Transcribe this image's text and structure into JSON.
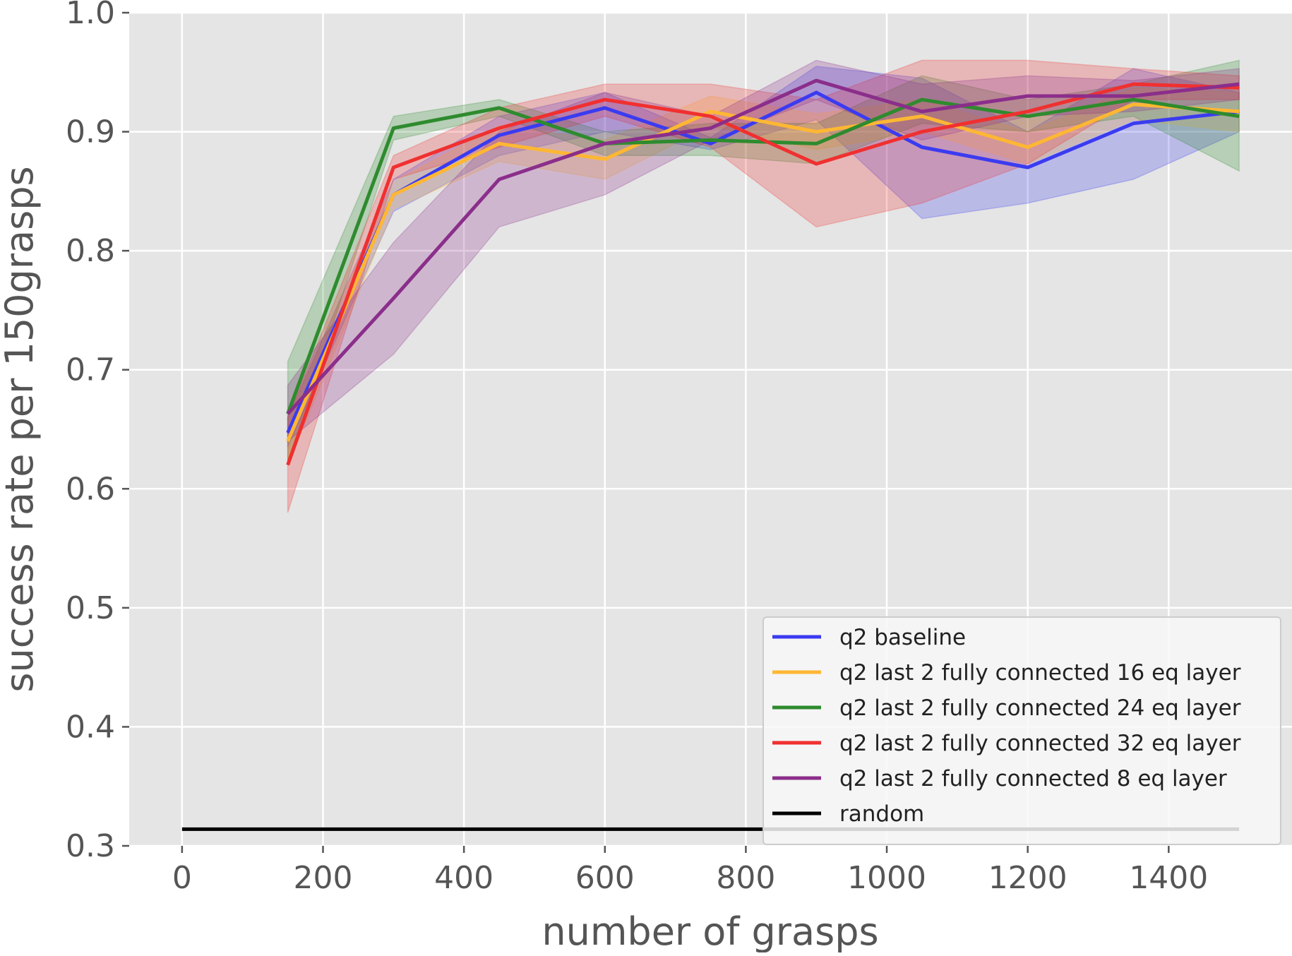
{
  "chart_data": {
    "type": "line",
    "title": "",
    "xlabel": "number of grasps",
    "ylabel": "success rate per 150grasps",
    "xlim": [
      -75,
      1575
    ],
    "ylim": [
      0.3,
      1.0
    ],
    "x_ticks": [
      0,
      200,
      400,
      600,
      800,
      1000,
      1200,
      1400
    ],
    "x_tick_labels": [
      "0",
      "200",
      "400",
      "600",
      "800",
      "1000",
      "1200",
      "1400"
    ],
    "y_ticks": [
      0.3,
      0.4,
      0.5,
      0.6,
      0.7,
      0.8,
      0.9,
      1.0
    ],
    "y_tick_labels": [
      "0.3",
      "0.4",
      "0.5",
      "0.6",
      "0.7",
      "0.8",
      "0.9",
      "1.0"
    ],
    "grid": true,
    "legend_position": "lower-right",
    "x": [
      150,
      300,
      450,
      600,
      750,
      900,
      1050,
      1200,
      1350,
      1500
    ],
    "series": [
      {
        "name": "q2 baseline",
        "color": "#3b3bf0",
        "values": [
          0.647,
          0.847,
          0.897,
          0.92,
          0.89,
          0.933,
          0.887,
          0.87,
          0.907,
          0.917
        ],
        "lower": [
          0.635,
          0.833,
          0.88,
          0.9,
          0.885,
          0.91,
          0.827,
          0.84,
          0.86,
          0.9
        ],
        "upper": [
          0.66,
          0.86,
          0.913,
          0.933,
          0.895,
          0.955,
          0.945,
          0.9,
          0.953,
          0.933
        ]
      },
      {
        "name": "q2 last 2 fully connected 16 eq layer",
        "color": "#ffb733",
        "values": [
          0.64,
          0.847,
          0.89,
          0.877,
          0.917,
          0.9,
          0.913,
          0.887,
          0.923,
          0.917
        ],
        "lower": [
          0.62,
          0.835,
          0.875,
          0.86,
          0.905,
          0.885,
          0.9,
          0.873,
          0.91,
          0.9
        ],
        "upper": [
          0.66,
          0.858,
          0.905,
          0.893,
          0.93,
          0.915,
          0.927,
          0.9,
          0.937,
          0.933
        ]
      },
      {
        "name": "q2 last 2 fully connected 24 eq layer",
        "color": "#2e8b2e",
        "values": [
          0.663,
          0.903,
          0.92,
          0.89,
          0.893,
          0.89,
          0.927,
          0.913,
          0.927,
          0.913
        ],
        "lower": [
          0.623,
          0.893,
          0.913,
          0.88,
          0.88,
          0.873,
          0.907,
          0.9,
          0.913,
          0.867
        ],
        "upper": [
          0.707,
          0.913,
          0.927,
          0.9,
          0.907,
          0.907,
          0.947,
          0.927,
          0.94,
          0.96
        ]
      },
      {
        "name": "q2 last 2 fully connected 32 eq layer",
        "color": "#f03030",
        "values": [
          0.62,
          0.87,
          0.903,
          0.927,
          0.913,
          0.873,
          0.9,
          0.917,
          0.94,
          0.937
        ],
        "lower": [
          0.58,
          0.86,
          0.887,
          0.913,
          0.887,
          0.82,
          0.84,
          0.873,
          0.927,
          0.927
        ],
        "upper": [
          0.66,
          0.88,
          0.92,
          0.94,
          0.94,
          0.927,
          0.96,
          0.96,
          0.953,
          0.947
        ]
      },
      {
        "name": "q2 last 2 fully connected 8 eq layer",
        "color": "#8b2e8b",
        "values": [
          0.663,
          0.76,
          0.86,
          0.89,
          0.903,
          0.943,
          0.917,
          0.93,
          0.93,
          0.94
        ],
        "lower": [
          0.64,
          0.713,
          0.82,
          0.847,
          0.893,
          0.927,
          0.893,
          0.913,
          0.917,
          0.927
        ],
        "upper": [
          0.687,
          0.807,
          0.9,
          0.933,
          0.913,
          0.96,
          0.94,
          0.947,
          0.943,
          0.953
        ]
      },
      {
        "name": "random",
        "color": "#000000",
        "x": [
          0,
          1500
        ],
        "values": [
          0.314,
          0.314
        ]
      }
    ]
  }
}
